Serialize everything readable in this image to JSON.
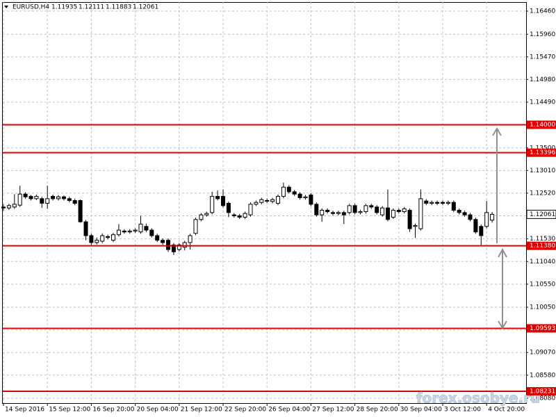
{
  "chart_data": {
    "type": "candlestick",
    "symbol": "EURUSD,H4",
    "watermark": "forex.osobye.ru",
    "categories": [
      "14 Sep 2016",
      null,
      null,
      null,
      null,
      null,
      null,
      null,
      "15 Sep 12:00",
      null,
      null,
      null,
      null,
      null,
      null,
      null,
      "16 Sep 20:00",
      null,
      null,
      null,
      null,
      null,
      null,
      null,
      "20 Sep 04:00",
      null,
      null,
      null,
      null,
      null,
      null,
      null,
      "21 Sep 12:00",
      null,
      null,
      null,
      null,
      null,
      null,
      null,
      "22 Sep 20:00",
      null,
      null,
      null,
      null,
      null,
      null,
      null,
      "26 Sep 04:00",
      null,
      null,
      null,
      null,
      null,
      null,
      null,
      "27 Sep 12:00",
      null,
      null,
      null,
      null,
      null,
      null,
      null,
      "28 Sep 20:00",
      null,
      null,
      null,
      null,
      null,
      null,
      null,
      "30 Sep 04:00",
      null,
      null,
      null,
      null,
      null,
      null,
      null,
      "3 Oct 12:00",
      null,
      null,
      null,
      null,
      null,
      null,
      null,
      "4 Oct 20:00",
      null
    ],
    "open": [
      1.1222,
      1.122,
      1.1222,
      1.1226,
      1.125,
      1.1245,
      1.124,
      1.124,
      1.123,
      1.1245,
      1.124,
      1.1244,
      1.124,
      1.1236,
      1.1236,
      1.119,
      1.116,
      1.1145,
      1.1148,
      1.1158,
      1.115,
      1.1162,
      1.117,
      1.1168,
      1.117,
      1.1168,
      1.118,
      1.1172,
      1.116,
      1.115,
      1.115,
      1.114,
      1.113,
      1.1135,
      1.1145,
      1.1165,
      1.1195,
      1.1205,
      1.121,
      1.1245,
      1.1245,
      1.123,
      1.1205,
      1.1203,
      1.12,
      1.1205,
      1.1228,
      1.1232,
      1.1236,
      1.1234,
      1.123,
      1.1245,
      1.1265,
      1.1255,
      1.125,
      1.1242,
      1.1248,
      1.1228,
      1.1205,
      1.1215,
      1.121,
      1.1208,
      1.121,
      1.121,
      1.1225,
      1.121,
      1.1212,
      1.1225,
      1.1222,
      1.1205,
      1.122,
      1.12,
      1.1215,
      1.1212,
      1.1215,
      1.118,
      1.1175,
      1.1235,
      1.123,
      1.1232,
      1.1232,
      1.123,
      1.1232,
      1.1215,
      1.121,
      1.1205,
      1.1195,
      1.118,
      1.118,
      1.11935
    ],
    "high": [
      1.1228,
      1.1229,
      1.125,
      1.1268,
      1.1254,
      1.1248,
      1.1249,
      1.1244,
      1.1268,
      1.1249,
      1.1248,
      1.1247,
      1.1244,
      1.124,
      1.1238,
      1.1194,
      1.1164,
      1.1156,
      1.1165,
      1.1162,
      1.1166,
      1.1185,
      1.1174,
      1.1174,
      1.1176,
      1.1203,
      1.1186,
      1.1176,
      1.1164,
      1.1154,
      1.1154,
      1.1144,
      1.1144,
      1.1149,
      1.1164,
      1.1199,
      1.1209,
      1.1212,
      1.1255,
      1.1258,
      1.126,
      1.1234,
      1.1209,
      1.1207,
      1.1212,
      1.1232,
      1.1236,
      1.1242,
      1.124,
      1.1242,
      1.1249,
      1.1275,
      1.1269,
      1.1259,
      1.1254,
      1.1248,
      1.1252,
      1.1232,
      1.1219,
      1.1219,
      1.1214,
      1.1214,
      1.1214,
      1.1229,
      1.1229,
      1.1216,
      1.1229,
      1.1229,
      1.1226,
      1.1224,
      1.126,
      1.1219,
      1.1219,
      1.1222,
      1.1219,
      1.1186,
      1.126,
      1.1239,
      1.1236,
      1.1236,
      1.1236,
      1.1236,
      1.1236,
      1.1219,
      1.1214,
      1.1209,
      1.1199,
      1.1184,
      1.1235,
      1.12111
    ],
    "low": [
      1.1214,
      1.1216,
      1.1218,
      1.1222,
      1.124,
      1.1236,
      1.1237,
      1.122,
      1.1218,
      1.1236,
      1.1236,
      1.1236,
      1.1232,
      1.1226,
      1.1188,
      1.115,
      1.114,
      1.1141,
      1.1144,
      1.1152,
      1.1146,
      1.1158,
      1.1164,
      1.1164,
      1.1166,
      1.1164,
      1.1168,
      1.1156,
      1.1146,
      1.114,
      1.1125,
      1.1118,
      1.1126,
      1.1128,
      1.113,
      1.1161,
      1.1191,
      1.1201,
      1.1206,
      1.1236,
      1.1221,
      1.12,
      1.1199,
      1.1196,
      1.1196,
      1.1201,
      1.1224,
      1.1228,
      1.1231,
      1.123,
      1.1226,
      1.1241,
      1.1251,
      1.1246,
      1.1238,
      1.1238,
      1.1224,
      1.1201,
      1.119,
      1.1208,
      1.1204,
      1.1204,
      1.1185,
      1.1206,
      1.1206,
      1.1206,
      1.1208,
      1.1218,
      1.1206,
      1.1201,
      1.1191,
      1.1196,
      1.1208,
      1.1208,
      1.1168,
      1.1155,
      1.1171,
      1.1226,
      1.1226,
      1.1226,
      1.1226,
      1.1226,
      1.1211,
      1.1206,
      1.1201,
      1.1191,
      1.1164,
      1.1138,
      1.1176,
      1.11883
    ],
    "close": [
      1.122,
      1.1225,
      1.1228,
      1.125,
      1.1244,
      1.124,
      1.1245,
      1.123,
      1.124,
      1.124,
      1.1244,
      1.124,
      1.1236,
      1.123,
      1.119,
      1.116,
      1.1145,
      1.115,
      1.116,
      1.1156,
      1.1162,
      1.1172,
      1.1168,
      1.117,
      1.1172,
      1.1185,
      1.1172,
      1.116,
      1.115,
      1.1145,
      1.113,
      1.1125,
      1.114,
      1.1145,
      1.116,
      1.1195,
      1.1205,
      1.1208,
      1.1245,
      1.124,
      1.1225,
      1.121,
      1.1203,
      1.12,
      1.1208,
      1.1228,
      1.1232,
      1.1238,
      1.1235,
      1.1238,
      1.1245,
      1.1265,
      1.1255,
      1.125,
      1.1242,
      1.1244,
      1.1228,
      1.1205,
      1.1215,
      1.1212,
      1.1208,
      1.121,
      1.1205,
      1.1225,
      1.121,
      1.1212,
      1.1225,
      1.1222,
      1.121,
      1.122,
      1.1195,
      1.1215,
      1.1212,
      1.1218,
      1.1175,
      1.1182,
      1.124,
      1.123,
      1.1232,
      1.123,
      1.123,
      1.1232,
      1.1215,
      1.121,
      1.1205,
      1.1195,
      1.1168,
      1.116,
      1.121,
      1.12061
    ],
    "ylim": [
      1.07975,
      1.16656
    ],
    "yticks": [
      {
        "value": 1.1646,
        "label": "1.16460"
      },
      {
        "value": 1.1596,
        "label": "1.15960"
      },
      {
        "value": 1.1547,
        "label": "1.15470"
      },
      {
        "value": 1.1498,
        "label": "1.14980"
      },
      {
        "value": 1.1449,
        "label": "1.14490"
      },
      {
        "value": 1.14,
        "label": "1.14000"
      },
      {
        "value": 1.135,
        "label": "1.13500"
      },
      {
        "value": 1.1301,
        "label": "1.13010"
      },
      {
        "value": 1.1252,
        "label": "1.12520"
      },
      {
        "value": 1.1203,
        "label": "1.12030"
      },
      {
        "value": 1.1153,
        "label": "1.11530"
      },
      {
        "value": 1.1104,
        "label": "1.11040"
      },
      {
        "value": 1.1055,
        "label": "1.10550"
      },
      {
        "value": 1.1005,
        "label": "1.10050"
      },
      {
        "value": 1.0956,
        "label": "1.09560"
      },
      {
        "value": 1.0907,
        "label": "1.09070"
      },
      {
        "value": 1.0858,
        "label": "1.08580"
      },
      {
        "value": 1.0808,
        "label": "1.08080"
      }
    ],
    "levels": [
      {
        "value": 1.14,
        "label": "1.14000"
      },
      {
        "value": 1.13396,
        "label": "1.13396"
      },
      {
        "value": 1.1138,
        "label": "1.11380"
      },
      {
        "value": 1.09593,
        "label": "1.09593"
      },
      {
        "value": 1.08231,
        "label": "1.08231"
      }
    ],
    "level_color": "#e00000",
    "grid": true
  }
}
